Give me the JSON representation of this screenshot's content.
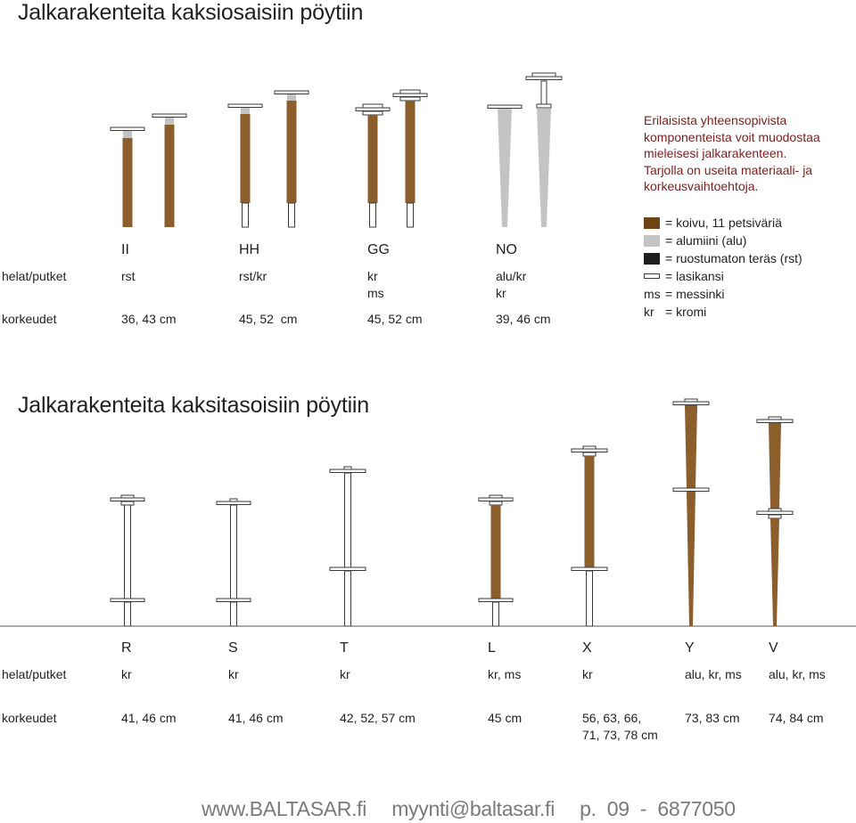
{
  "section1": {
    "title": "Jalkarakenteita kaksiosaisiin pöytiin",
    "codes": [
      "II",
      "HH",
      "GG",
      "NO"
    ],
    "row_labels": {
      "helat": "helat/putket",
      "korkeudet": "korkeudet"
    },
    "helat": [
      [
        "rst"
      ],
      [
        "rst/kr"
      ],
      [
        "kr",
        "ms"
      ],
      [
        "alu/kr",
        "kr"
      ]
    ],
    "korkeudet": [
      "36, 43 cm",
      "45, 52  cm",
      "45, 52 cm",
      "39, 46 cm"
    ]
  },
  "intro": [
    "Erilaisista yhteensopivista",
    "komponenteista voit muodostaa",
    "mieleisesi jalkarakenteen.",
    "Tarjolla on useita materiaali- ja",
    "korkeusvaihtoehtoja."
  ],
  "legend": [
    {
      "abbr": "",
      "swatch": "#6e4416",
      "text": "= koivu, 11 petsiväriä"
    },
    {
      "abbr": "",
      "swatch": "#c4c4c4",
      "text": "= alumiini (alu)"
    },
    {
      "abbr": "",
      "swatch": "#1e1e1e",
      "text": "= ruostumaton teräs (rst)"
    },
    {
      "abbr": "",
      "swatch": "glass",
      "text": "= lasikansi"
    },
    {
      "abbr": "ms",
      "swatch": "",
      "text": "= messinki"
    },
    {
      "abbr": "kr",
      "swatch": "",
      "text": "= kromi"
    }
  ],
  "section2": {
    "title": "Jalkarakenteita kaksitasoisiin pöytiin",
    "codes": [
      "R",
      "S",
      "T",
      "L",
      "X",
      "Y",
      "V"
    ],
    "row_labels": {
      "helat": "helat/putket",
      "korkeudet": "korkeudet"
    },
    "helat": [
      "kr",
      "kr",
      "kr",
      "kr, ms",
      "kr",
      "alu, kr, ms",
      "alu, kr, ms"
    ],
    "korkeudet": [
      [
        "41, 46 cm"
      ],
      [
        "41, 46 cm"
      ],
      [
        "42, 52, 57 cm"
      ],
      [
        "45 cm"
      ],
      [
        "56, 63, 66,",
        "71, 73, 78 cm"
      ],
      [
        "73, 83 cm"
      ],
      [
        "74, 84 cm"
      ]
    ]
  },
  "colors": {
    "wood": "#8b5e2b",
    "wood_dark": "#6e4416",
    "aluminium": "#c4c4c4",
    "steel": "#1e1e1e",
    "outline": "#3a3a3a",
    "intro_text": "#7b1e1e",
    "footer_text": "#7a7a7a"
  },
  "footer": {
    "website": "www.BALTASAR.fi",
    "email": "myynti@baltasar.fi",
    "phone": "p. 09 - 6877050"
  }
}
